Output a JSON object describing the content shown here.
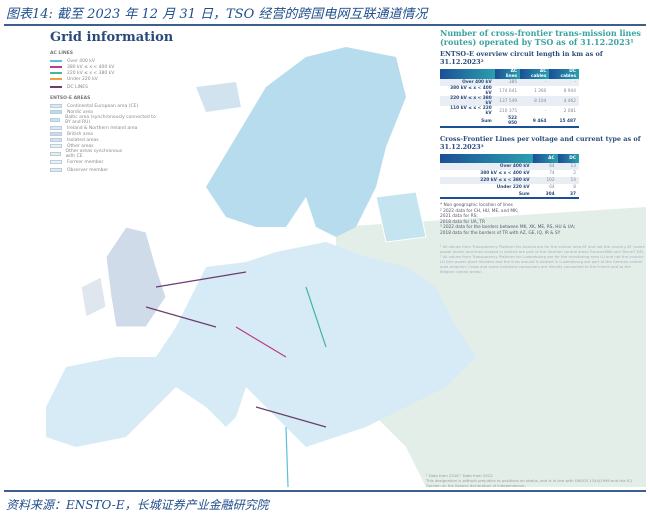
{
  "caption": {
    "title": "图表14:  截至 2023 年 12 月 31 日，TSO 经营的跨国电网互联通道情况",
    "source": "资料来源：ENSTO-E，长城证券产业金融研究院"
  },
  "map": {
    "title": "Grid information",
    "legend": {
      "ac_heading": "AC LINES",
      "ac_lines": [
        {
          "label": "Over 400 kV",
          "color": "#5bc0d8"
        },
        {
          "label": "380 kV ≤ x < 400 kV",
          "color": "#c0398a"
        },
        {
          "label": "220 kV ≤ x < 380 kV",
          "color": "#46b89a"
        },
        {
          "label": "Under 220 kV",
          "color": "#f0a040"
        }
      ],
      "dc_label": "DC LINES",
      "dc_color": "#6b3e6e",
      "areas_heading": "ENTSO-E AREAS",
      "areas": [
        {
          "label": "Continental European area (CE)",
          "color": "#d6ebf5"
        },
        {
          "label": "Nordic area",
          "color": "#b7dced"
        },
        {
          "label": "Baltic area (synchronously connected to BY and RU)",
          "color": "#c4e4f0"
        },
        {
          "label": "Ireland & Northern Ireland area",
          "color": "#dfe6ee"
        },
        {
          "label": "British area",
          "color": "#cfdbe8"
        },
        {
          "label": "Isolated areas",
          "color": "#d2e3f0"
        },
        {
          "label": "Other areas",
          "color": "#eeeeee"
        },
        {
          "label": "Other areas synchronous with CE",
          "color": "#e6efd8"
        },
        {
          "label": "Former member",
          "color": "#e8f3f8"
        },
        {
          "label": "Observer member",
          "color": "#dcecea"
        }
      ]
    },
    "colors": {
      "land": "#d6ebf5",
      "other": "#e4eee9",
      "sea": "#ffffff",
      "border": "#ffffff"
    }
  },
  "panel": {
    "heading": "Number of cross-frontier trans-mission lines (routes) operated by TSO as of 31.12.2023¹",
    "circuit": {
      "title": "ENTSO-E overview circuit length in km as of 31.12.2023²",
      "columns": [
        "",
        "AC lines",
        "AC cables",
        "DC cables"
      ],
      "rows": [
        [
          "Over 400 kV",
          "385",
          "-",
          "-"
        ],
        [
          "380 kV ≤ x < 400 kV",
          "174 641",
          "1 360",
          "8 944"
        ],
        [
          "220 kV ≤ x < 380 kV",
          "137 549",
          "8 104",
          "4 462"
        ],
        [
          "110 kV ≤ x < 220 kV",
          "210 375",
          "-",
          "2 081"
        ],
        [
          "Sum",
          "522 950",
          "9 464",
          "15 487"
        ]
      ]
    },
    "cross": {
      "title": "Cross-Frontier Lines per voltage and current type as of 31.12.2023³",
      "columns": [
        "",
        "AC",
        "DC"
      ],
      "rows": [
        [
          "Over 400 kV",
          "64",
          "13"
        ],
        [
          "380 kV ≤ x < 400 kV",
          "74",
          "2"
        ],
        [
          "220 kV ≤ x < 380 kV",
          "102",
          "14"
        ],
        [
          "Under 220 kV",
          "64",
          "8"
        ],
        [
          "Sum",
          "304",
          "37"
        ]
      ]
    },
    "notes": [
      "* Non geographic location of lines",
      "² 2022 data for CH, HU, ME, and MK;",
      "2021 data for RS;",
      "2018 data for UA, TR",
      "³ 2022 data for the borders between MK, XK, ME, RS, HU & UA;",
      "2018 data for the borders of TR with AZ, GE, IQ, IR & SY"
    ],
    "faded_notes": [
      "¹ All values from Transparency Platform for Austria are for the control area AT and not the country AT (some power plants and lines located in Austria are part of the German control areas TransnetBW and TenneT DE).",
      "² All values from Transparency Platform for Luxembourg are for the monitoring area LU and not the country LU (the power plant Vianden and the lines around it located in Luxembourg are part of the German control area Amprion; Creos and some industrial consumers are directly connected to the French and to the Belgian control areas)."
    ],
    "footnote": [
      "¹ Data from 2018    ² Data from 2022",
      "This designation is without prejudice to positions on status, and is in line with UNSCR 1244/1999 and the ICJ Opinion on the Kosovo declaration of independence."
    ]
  }
}
